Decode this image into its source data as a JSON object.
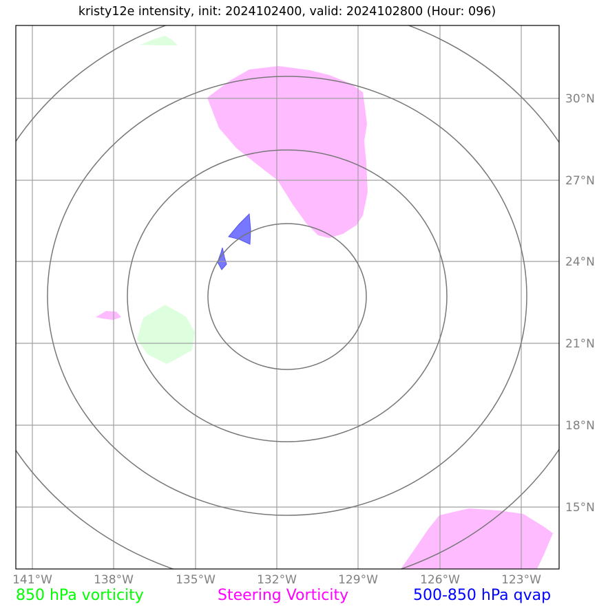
{
  "title": "kristy12e intensity, init: 2024102400, valid: 2024102800 (Hour: 096)",
  "map": {
    "lon_ticks": [
      "141°W",
      "138°W",
      "135°W",
      "132°W",
      "129°W",
      "126°W",
      "123°W"
    ],
    "lat_ticks": [
      "30°N",
      "27°N",
      "24°N",
      "21°N",
      "18°N",
      "15°N"
    ],
    "colors": {
      "grid": "#a0a0a0",
      "range_rings": "#777777",
      "steering_vorticity": "#ffbbff",
      "vorticity_850": "#ddffdd",
      "qvap": "#7777ff"
    }
  },
  "legend": {
    "vort850": {
      "label": "850 hPa vorticity",
      "color": "#00ff00"
    },
    "steering": {
      "label": "Steering Vorticity",
      "color": "#ff00ff"
    },
    "qvap": {
      "label": "500-850 hPa qvap",
      "color": "#0000ff"
    }
  }
}
